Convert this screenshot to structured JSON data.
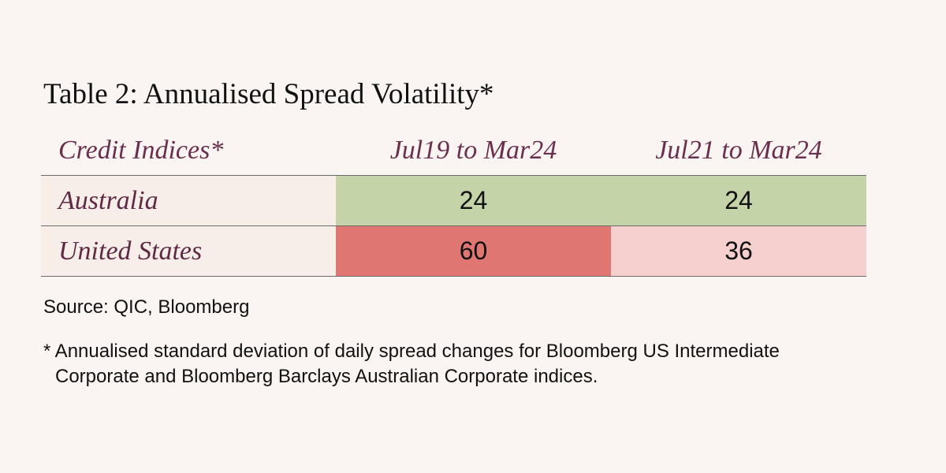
{
  "title": "Table 2: Annualised Spread Volatility*",
  "table": {
    "headers": [
      "Credit Indices*",
      "Jul19 to Mar24",
      "Jul21 to Mar24"
    ],
    "rows": [
      {
        "label": "Australia",
        "values": [
          "24",
          "24"
        ],
        "colors": [
          "#c5d3a9",
          "#c5d3a9"
        ]
      },
      {
        "label": "United States",
        "values": [
          "60",
          "36"
        ],
        "colors": [
          "#e07672",
          "#f6cfcf"
        ]
      }
    ]
  },
  "source": "Source: QIC, Bloomberg",
  "footnote": {
    "line1": "* Annualised standard deviation of daily spread changes for Bloomberg US Intermediate",
    "line2": "Corporate and Bloomberg Barclays Australian Corporate indices."
  }
}
